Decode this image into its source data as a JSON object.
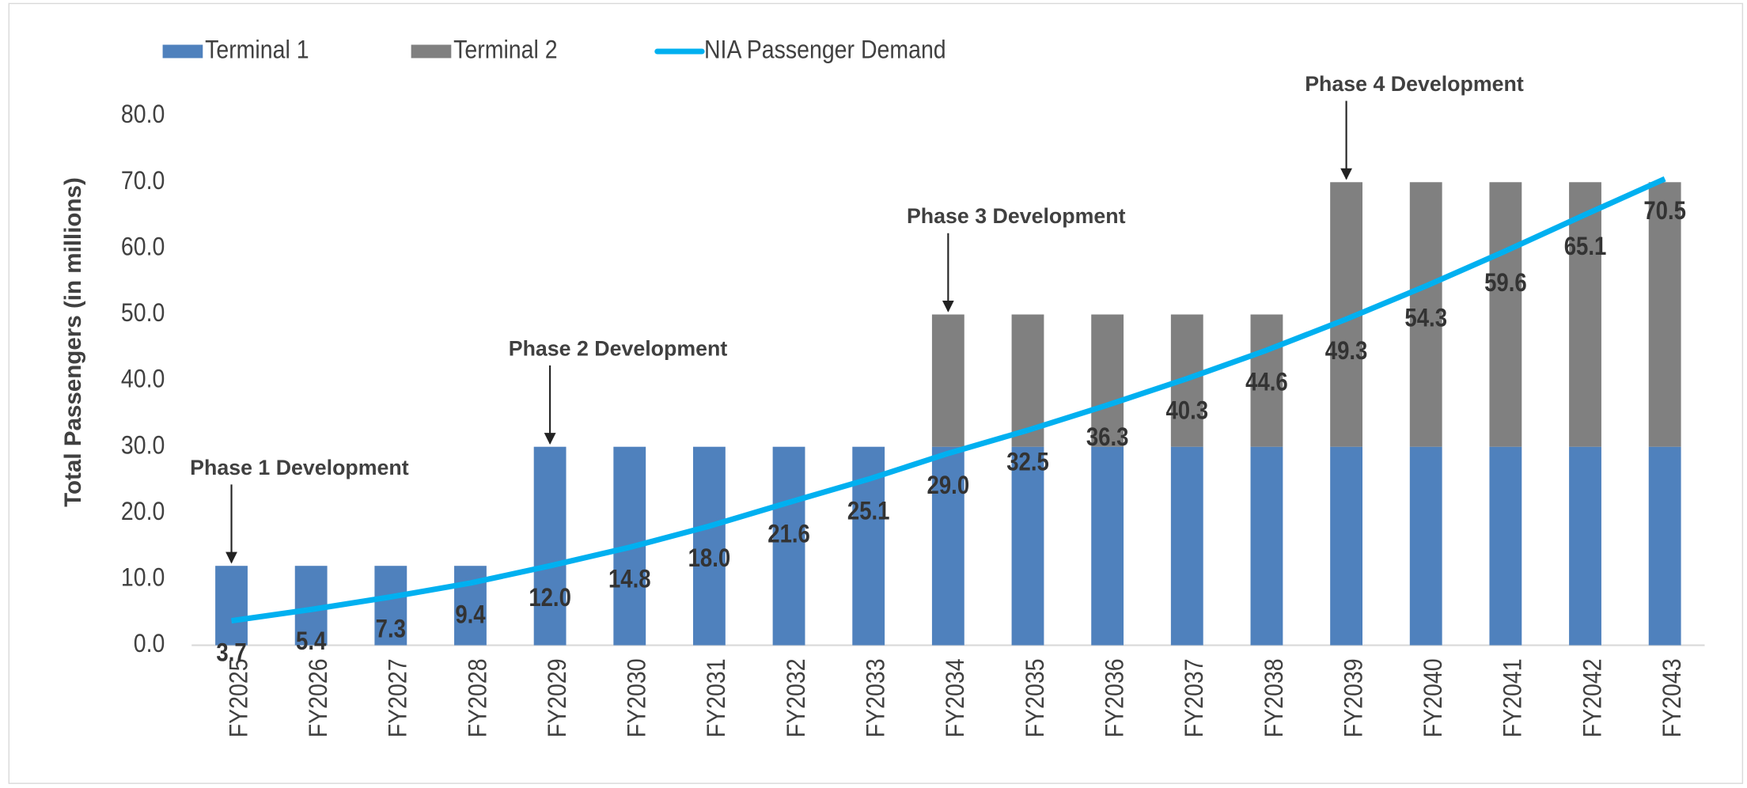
{
  "chart_data": {
    "type": "bar",
    "stacked": true,
    "y_axis_label": "Total Passengers (in millions)",
    "categories": [
      "FY2025",
      "FY2026",
      "FY2027",
      "FY2028",
      "FY2029",
      "FY2030",
      "FY2031",
      "FY2032",
      "FY2033",
      "FY2034",
      "FY2035",
      "FY2036",
      "FY2037",
      "FY2038",
      "FY2039",
      "FY2040",
      "FY2041",
      "FY2042",
      "FY2043"
    ],
    "series": [
      {
        "name": "Terminal 1",
        "type": "bar",
        "color": "#4f81bd",
        "values": [
          12,
          12,
          12,
          12,
          30,
          30,
          30,
          30,
          30,
          30,
          30,
          30,
          30,
          30,
          30,
          30,
          30,
          30,
          30
        ]
      },
      {
        "name": "Terminal 2",
        "type": "bar",
        "color": "#808080",
        "values": [
          0,
          0,
          0,
          0,
          0,
          0,
          0,
          0,
          0,
          20,
          20,
          20,
          20,
          20,
          40,
          40,
          40,
          40,
          40
        ]
      },
      {
        "name": "NIA Passenger Demand",
        "type": "line",
        "color": "#00b0f0",
        "values": [
          3.7,
          5.4,
          7.3,
          9.4,
          12.0,
          14.8,
          18.0,
          21.6,
          25.1,
          29.0,
          32.5,
          36.3,
          40.3,
          44.6,
          49.3,
          54.3,
          59.6,
          65.1,
          70.5
        ],
        "value_labels": [
          "3.7",
          "5.4",
          "7.3",
          "9.4",
          "12.0",
          "14.8",
          "18.0",
          "21.6",
          "25.1",
          "29.0",
          "32.5",
          "36.3",
          "40.3",
          "44.6",
          "49.3",
          "54.3",
          "59.6",
          "65.1",
          "70.5"
        ]
      }
    ],
    "ylim": [
      0,
      80
    ],
    "yticks": [
      {
        "value": 0,
        "label": "0.0"
      },
      {
        "value": 10,
        "label": "10.0"
      },
      {
        "value": 20,
        "label": "20.0"
      },
      {
        "value": 30,
        "label": "30.0"
      },
      {
        "value": 40,
        "label": "40.0"
      },
      {
        "value": 50,
        "label": "50.0"
      },
      {
        "value": 60,
        "label": "60.0"
      },
      {
        "value": 70,
        "label": "70.0"
      },
      {
        "value": 80,
        "label": "80.0"
      }
    ],
    "grid": false,
    "legend": "top",
    "annotations": [
      {
        "text": "Phase 1 Development",
        "x": "FY2025"
      },
      {
        "text": "Phase 2 Development",
        "x": "FY2029"
      },
      {
        "text": "Phase 3 Development",
        "x": "FY2034"
      },
      {
        "text": "Phase 4 Development",
        "x": "FY2039"
      }
    ]
  }
}
